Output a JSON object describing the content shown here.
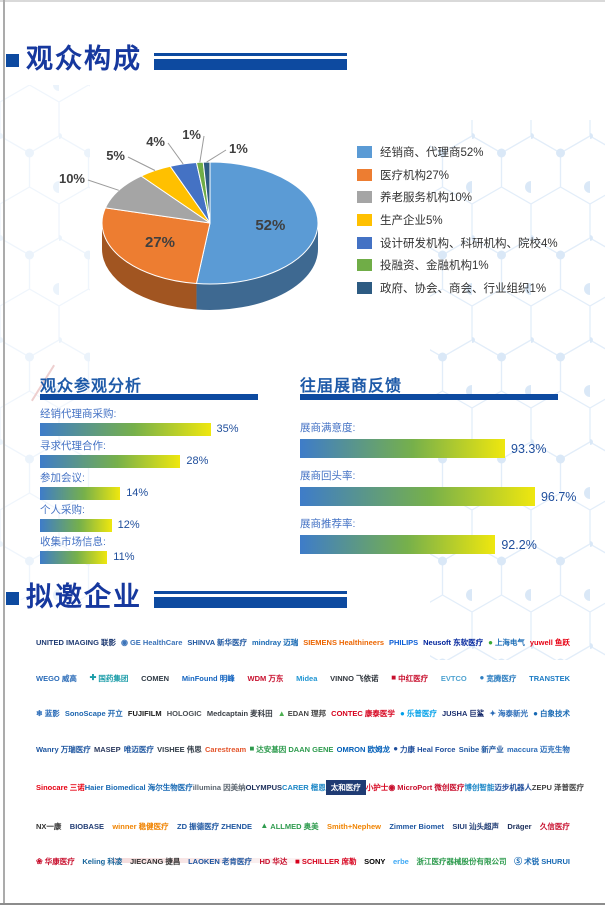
{
  "page": {
    "section_audience_title": "观众构成",
    "section_invited_title": "拟邀企业"
  },
  "chart_data": [
    {
      "type": "pie",
      "style": "3d",
      "title": "观众构成",
      "legend_position": "right",
      "categories": [
        "经销商、代理商",
        "医疗机构",
        "养老服务机构",
        "生产企业",
        "设计研发机构、科研机构、院校",
        "投融资、金融机构",
        "政府、协会、商会、行业组织"
      ],
      "values": [
        52,
        27,
        10,
        5,
        4,
        1,
        1
      ],
      "value_labels": [
        "52%",
        "27%",
        "10%",
        "5%",
        "4%",
        "1%",
        "1%"
      ],
      "legend_labels": [
        "经销商、代理商52%",
        "医疗机构27%",
        "养老服务机构10%",
        "生产企业5%",
        "设计研发机构、科研机构、院校4%",
        "投融资、金融机构1%",
        "政府、协会、商会、行业组织1%"
      ],
      "colors": [
        "#5B9BD5",
        "#ED7D31",
        "#A5A5A5",
        "#FFC000",
        "#4472C4",
        "#70AD47",
        "#2D5B82"
      ]
    },
    {
      "type": "bar",
      "orientation": "horizontal",
      "title": "观众参观分析",
      "categories": [
        "经销代理商采购:",
        "寻求代理合作:",
        "参加会议:",
        "个人采购:",
        "收集市场信息:"
      ],
      "values": [
        35,
        28,
        14,
        12,
        11
      ],
      "value_labels": [
        "35%",
        "28%",
        "14%",
        "12%",
        "11%"
      ],
      "xlim": [
        0,
        40
      ],
      "grid": false,
      "bar_gradient": [
        "#3E7CC9",
        "#76B04B",
        "#EFE70E"
      ]
    },
    {
      "type": "bar",
      "orientation": "horizontal",
      "title": "往届展商反馈",
      "categories": [
        "展商满意度:",
        "展商回头率:",
        "展商推荐率:"
      ],
      "values": [
        93.3,
        96.7,
        92.2
      ],
      "value_labels": [
        "93.3%",
        "96.7%",
        "92.2%"
      ],
      "xlim": [
        0,
        100
      ],
      "grid": false,
      "bar_gradient": [
        "#3E7CC9",
        "#76B04B",
        "#EFE70E"
      ]
    }
  ],
  "theme": {
    "header_blue": "#0D4AA0",
    "title_text_blue": "#16389E",
    "subtitle_blue": "#1E5AA8",
    "bar_label_blue": "#4472C4",
    "value_blue": "#1F4E9C",
    "hex_line": "#CBDFF4",
    "hex_dot": "#BCD6F0"
  },
  "logos": {
    "rows": [
      [
        {
          "n": "UNITED IMAGING 联影",
          "c": "#1F3B73"
        },
        {
          "n": "GE HealthCare",
          "c": "#3B73B9",
          "i": "◉",
          "ic": "#3B73B9"
        },
        {
          "n": "SHINVA 新华医疗",
          "c": "#1E56A0"
        },
        {
          "n": "mindray 迈瑞",
          "c": "#1668B3"
        },
        {
          "n": "SIEMENS Healthineers",
          "c": "#EC6602"
        },
        {
          "n": "PHILIPS",
          "c": "#0B5ED7"
        },
        {
          "n": "Neusoft 东软医疗",
          "c": "#00249C"
        },
        {
          "n": "上海电气",
          "c": "#1F6FB8",
          "i": "●",
          "ic": "#3AA935"
        },
        {
          "n": "yuwell 鱼跃",
          "c": "#E60012"
        }
      ],
      [
        {
          "n": "WEGO 威高",
          "c": "#2B6CB8"
        },
        {
          "n": "国药集团",
          "c": "#1A9CA8",
          "i": "✚",
          "ic": "#1A9CA8"
        },
        {
          "n": "COMEN",
          "c": "#2F3A45"
        },
        {
          "n": "MinFound 明峰",
          "c": "#1565C0"
        },
        {
          "n": "WDM 万东",
          "c": "#C8102E"
        },
        {
          "n": "Midea",
          "c": "#2196D3"
        },
        {
          "n": "VINNO 飞依诺",
          "c": "#30363D"
        },
        {
          "n": "中红医疗",
          "c": "#C8102E",
          "i": "■",
          "ic": "#C8102E"
        },
        {
          "n": "EVTCO",
          "c": "#4FA3D1"
        },
        {
          "n": "宽腾医疗",
          "c": "#2F7FC1",
          "i": "●",
          "ic": "#2F7FC1"
        },
        {
          "n": "TRANSTEK",
          "c": "#1A7AC4"
        }
      ],
      [
        {
          "n": "蓝影",
          "c": "#2B6CB8",
          "i": "❄",
          "ic": "#2B6CB8"
        },
        {
          "n": "SonoScape 开立",
          "c": "#1E66B0"
        },
        {
          "n": "FUJIFILM",
          "c": "#1A1A1A"
        },
        {
          "n": "HOLOGIC",
          "c": "#4A4F54"
        },
        {
          "n": "Medcaptain 麦科田",
          "c": "#3A3F46"
        },
        {
          "n": "EDAN 理邦",
          "c": "#444444",
          "i": "▲",
          "ic": "#4CAF50"
        },
        {
          "n": "CONTEC 康泰医学",
          "c": "#D6001C"
        },
        {
          "n": "乐普医疗",
          "c": "#00A0E9",
          "i": "●",
          "ic": "#00A0E9"
        },
        {
          "n": "JUSHA 巨鲨",
          "c": "#1B2F6E"
        },
        {
          "n": "海泰新光",
          "c": "#2B6CB8",
          "i": "✦",
          "ic": "#2B6CB8"
        },
        {
          "n": "白象技术",
          "c": "#1668B3",
          "i": "●",
          "ic": "#1668B3"
        }
      ],
      [
        {
          "n": "Wanry 万瑞医疗",
          "c": "#1E56A0"
        },
        {
          "n": "MASEP",
          "c": "#2B3A5F"
        },
        {
          "n": "唯迈医疗",
          "c": "#1E56A0"
        },
        {
          "n": "VISHEE 伟思",
          "c": "#2F3A45"
        },
        {
          "n": "Carestream",
          "c": "#E4572E"
        },
        {
          "n": "达安基因 DAAN GENE",
          "c": "#2E9B4E",
          "i": "■",
          "ic": "#2E9B4E"
        },
        {
          "n": "OMRON 欧姆龙",
          "c": "#005EB8"
        },
        {
          "n": "力康 Heal Force",
          "c": "#1F4E9C",
          "i": "●",
          "ic": "#1F4E9C"
        },
        {
          "n": "Snibe 新产业",
          "c": "#1E56A0"
        },
        {
          "n": "maccura 迈克生物",
          "c": "#2B6CB8"
        }
      ],
      [
        {
          "n": "Sinocare 三诺",
          "c": "#E60012"
        },
        {
          "n": "Haier Biomedical 海尔生物医疗",
          "c": "#1668B3"
        },
        {
          "n": "illumina 因美纳",
          "c": "#5C6670"
        },
        {
          "n": "OLYMPUS",
          "c": "#1B2E5A"
        },
        {
          "n": "CARER 楷恩",
          "c": "#1E88C7"
        },
        {
          "n": "太和医疗",
          "c": "#FFFFFF",
          "bg": "#1F3B73"
        },
        {
          "n": "小护士",
          "c": "#D6001C"
        },
        {
          "n": "MicroPort 微创医疗",
          "c": "#C8102E",
          "i": "◉",
          "ic": "#C8102E"
        },
        {
          "n": "博创智能",
          "c": "#1E88C7"
        },
        {
          "n": "迈步机器人",
          "c": "#1F4E9C"
        },
        {
          "n": "ZEPU 泽普医疗",
          "c": "#444444"
        }
      ],
      [
        {
          "n": "NX一康",
          "c": "#333333"
        },
        {
          "n": "BIOBASE",
          "c": "#1F3B73"
        },
        {
          "n": "winner 稳健医疗",
          "c": "#F08300"
        },
        {
          "n": "ZD 振德医疗 ZHENDE",
          "c": "#1E56A0"
        },
        {
          "n": "ALLMED 奥美",
          "c": "#2E9B4E",
          "i": "▲",
          "ic": "#2E9B4E"
        },
        {
          "n": "Smith+Nephew",
          "c": "#F08300"
        },
        {
          "n": "Zimmer Biomet",
          "c": "#1E56A0"
        },
        {
          "n": "SIUI 汕头超声",
          "c": "#1F3B73"
        },
        {
          "n": "Dräger",
          "c": "#1B2E5A"
        },
        {
          "n": "久信医疗",
          "c": "#C8102E"
        }
      ],
      [
        {
          "n": "华康医疗",
          "c": "#C8102E",
          "i": "❀",
          "ic": "#C8102E"
        },
        {
          "n": "Keling 科凌",
          "c": "#16649B"
        },
        {
          "n": "JIECANG 捷昌",
          "c": "#333333"
        },
        {
          "n": "LAOKEN 老肯医疗",
          "c": "#1E56A0"
        },
        {
          "n": "HD 华达",
          "c": "#C8102E"
        },
        {
          "n": "SCHILLER 席勒",
          "c": "#D6001C",
          "i": "■",
          "ic": "#D6001C"
        },
        {
          "n": "SONY",
          "c": "#000000"
        },
        {
          "n": "erbe",
          "c": "#3FA9F5"
        },
        {
          "n": "浙江医疗器械股份有限公司",
          "c": "#2E9B4E"
        },
        {
          "n": "术锐 SHURUI",
          "c": "#1668B3",
          "i": "Ⓢ",
          "ic": "#1668B3"
        }
      ]
    ]
  }
}
